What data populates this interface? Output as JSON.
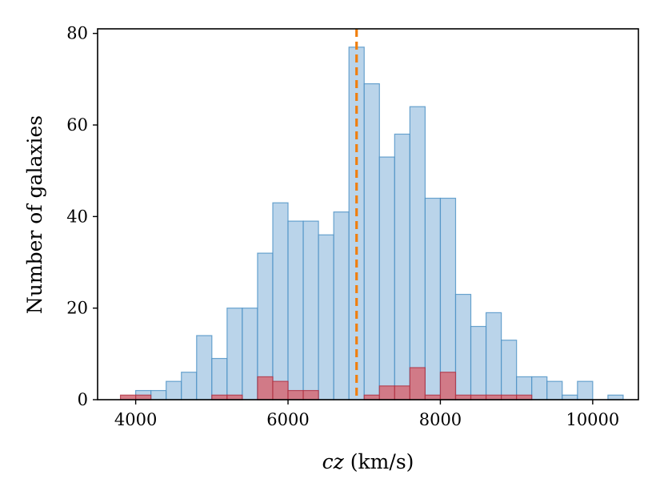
{
  "chart_data": {
    "type": "bar",
    "xlabel_var": "cz",
    "xlabel_unit": "(km/s)",
    "ylabel": "Number of galaxies",
    "xlim": [
      3500,
      10600
    ],
    "ylim": [
      0,
      81
    ],
    "xticks": [
      4000,
      6000,
      8000,
      10000
    ],
    "yticks": [
      0,
      20,
      40,
      60,
      80
    ],
    "bin_width": 200,
    "grid": false,
    "series": [
      {
        "color": "#aecde6",
        "edge_color": "#4a90c4",
        "bins": [
          {
            "x0": 4000,
            "count": 2
          },
          {
            "x0": 4200,
            "count": 2
          },
          {
            "x0": 4400,
            "count": 4
          },
          {
            "x0": 4600,
            "count": 6
          },
          {
            "x0": 4800,
            "count": 14
          },
          {
            "x0": 5000,
            "count": 9
          },
          {
            "x0": 5200,
            "count": 20
          },
          {
            "x0": 5400,
            "count": 20
          },
          {
            "x0": 5600,
            "count": 32
          },
          {
            "x0": 5800,
            "count": 43
          },
          {
            "x0": 6000,
            "count": 39
          },
          {
            "x0": 6200,
            "count": 39
          },
          {
            "x0": 6400,
            "count": 36
          },
          {
            "x0": 6600,
            "count": 41
          },
          {
            "x0": 6800,
            "count": 77
          },
          {
            "x0": 7000,
            "count": 69
          },
          {
            "x0": 7200,
            "count": 53
          },
          {
            "x0": 7400,
            "count": 58
          },
          {
            "x0": 7600,
            "count": 64
          },
          {
            "x0": 7800,
            "count": 44
          },
          {
            "x0": 8000,
            "count": 44
          },
          {
            "x0": 8200,
            "count": 23
          },
          {
            "x0": 8400,
            "count": 16
          },
          {
            "x0": 8600,
            "count": 19
          },
          {
            "x0": 8800,
            "count": 13
          },
          {
            "x0": 9000,
            "count": 5
          },
          {
            "x0": 9200,
            "count": 5
          },
          {
            "x0": 9400,
            "count": 4
          },
          {
            "x0": 9600,
            "count": 1
          },
          {
            "x0": 9800,
            "count": 4
          },
          {
            "x0": 10200,
            "count": 1
          }
        ]
      },
      {
        "color": "#d4707c",
        "edge_color": "#b03040",
        "bins": [
          {
            "x0": 3800,
            "count": 1
          },
          {
            "x0": 4000,
            "count": 1
          },
          {
            "x0": 5000,
            "count": 1
          },
          {
            "x0": 5200,
            "count": 1
          },
          {
            "x0": 5600,
            "count": 5
          },
          {
            "x0": 5800,
            "count": 4
          },
          {
            "x0": 6000,
            "count": 2
          },
          {
            "x0": 6200,
            "count": 2
          },
          {
            "x0": 7000,
            "count": 1
          },
          {
            "x0": 7200,
            "count": 3
          },
          {
            "x0": 7400,
            "count": 3
          },
          {
            "x0": 7600,
            "count": 7
          },
          {
            "x0": 7800,
            "count": 1
          },
          {
            "x0": 8000,
            "count": 6
          },
          {
            "x0": 8200,
            "count": 1
          },
          {
            "x0": 8400,
            "count": 1
          },
          {
            "x0": 8600,
            "count": 1
          },
          {
            "x0": 8800,
            "count": 1
          },
          {
            "x0": 9000,
            "count": 1
          }
        ]
      }
    ],
    "reference_line": {
      "x": 6900,
      "color": "#f07f0e",
      "style": "dashed"
    }
  }
}
